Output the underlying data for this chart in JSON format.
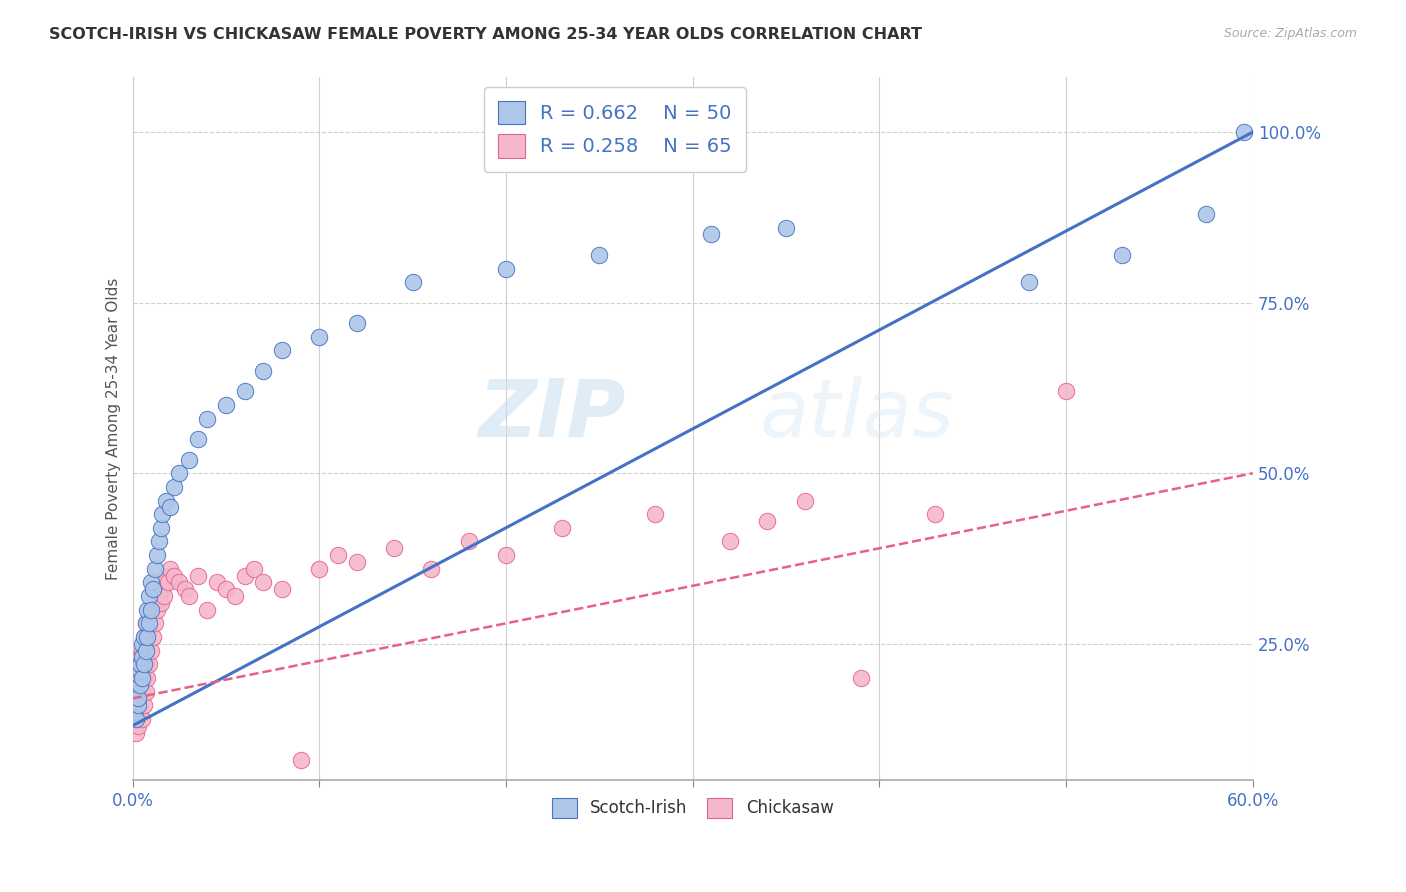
{
  "title": "SCOTCH-IRISH VS CHICKASAW FEMALE POVERTY AMONG 25-34 YEAR OLDS CORRELATION CHART",
  "source": "Source: ZipAtlas.com",
  "ylabel": "Female Poverty Among 25-34 Year Olds",
  "ytick_labels": [
    "25.0%",
    "50.0%",
    "75.0%",
    "100.0%"
  ],
  "ytick_values": [
    0.25,
    0.5,
    0.75,
    1.0
  ],
  "xmin": 0.0,
  "xmax": 0.6,
  "ymin": 0.05,
  "ymax": 1.08,
  "scotch_irish_color": "#aec6e8",
  "chickasaw_color": "#f4b8cc",
  "scotch_irish_line_color": "#4472c4",
  "chickasaw_line_color": "#e8608a",
  "legend_r1": "R = 0.662",
  "legend_n1": "N = 50",
  "legend_r2": "R = 0.258",
  "legend_n2": "N = 65",
  "watermark_zip": "ZIP",
  "watermark_atlas": "atlas",
  "background_color": "#ffffff",
  "grid_color": "#d0d0d0",
  "scotch_irish_x": [
    0.001,
    0.002,
    0.002,
    0.003,
    0.003,
    0.003,
    0.004,
    0.004,
    0.004,
    0.005,
    0.005,
    0.005,
    0.006,
    0.006,
    0.007,
    0.007,
    0.008,
    0.008,
    0.009,
    0.009,
    0.01,
    0.01,
    0.011,
    0.012,
    0.013,
    0.014,
    0.015,
    0.016,
    0.018,
    0.02,
    0.022,
    0.025,
    0.03,
    0.035,
    0.04,
    0.05,
    0.06,
    0.07,
    0.08,
    0.1,
    0.12,
    0.15,
    0.2,
    0.25,
    0.31,
    0.35,
    0.48,
    0.53,
    0.575,
    0.595
  ],
  "scotch_irish_y": [
    0.15,
    0.14,
    0.18,
    0.16,
    0.17,
    0.2,
    0.19,
    0.21,
    0.22,
    0.2,
    0.23,
    0.25,
    0.22,
    0.26,
    0.24,
    0.28,
    0.26,
    0.3,
    0.28,
    0.32,
    0.3,
    0.34,
    0.33,
    0.36,
    0.38,
    0.4,
    0.42,
    0.44,
    0.46,
    0.45,
    0.48,
    0.5,
    0.52,
    0.55,
    0.58,
    0.6,
    0.62,
    0.65,
    0.68,
    0.7,
    0.72,
    0.78,
    0.8,
    0.82,
    0.85,
    0.86,
    0.78,
    0.82,
    0.88,
    1.0
  ],
  "chickasaw_x": [
    0.001,
    0.001,
    0.002,
    0.002,
    0.002,
    0.003,
    0.003,
    0.003,
    0.004,
    0.004,
    0.004,
    0.005,
    0.005,
    0.005,
    0.006,
    0.006,
    0.006,
    0.007,
    0.007,
    0.007,
    0.008,
    0.008,
    0.009,
    0.009,
    0.01,
    0.01,
    0.011,
    0.012,
    0.013,
    0.014,
    0.015,
    0.016,
    0.017,
    0.018,
    0.019,
    0.02,
    0.022,
    0.025,
    0.028,
    0.03,
    0.035,
    0.04,
    0.045,
    0.05,
    0.055,
    0.06,
    0.065,
    0.07,
    0.08,
    0.09,
    0.1,
    0.11,
    0.12,
    0.14,
    0.16,
    0.18,
    0.2,
    0.23,
    0.28,
    0.32,
    0.34,
    0.36,
    0.39,
    0.43,
    0.5
  ],
  "chickasaw_y": [
    0.14,
    0.18,
    0.12,
    0.16,
    0.2,
    0.13,
    0.17,
    0.22,
    0.15,
    0.19,
    0.23,
    0.14,
    0.18,
    0.24,
    0.16,
    0.2,
    0.26,
    0.18,
    0.22,
    0.28,
    0.2,
    0.25,
    0.22,
    0.27,
    0.24,
    0.3,
    0.26,
    0.28,
    0.3,
    0.32,
    0.31,
    0.33,
    0.32,
    0.35,
    0.34,
    0.36,
    0.35,
    0.34,
    0.33,
    0.32,
    0.35,
    0.3,
    0.34,
    0.33,
    0.32,
    0.35,
    0.36,
    0.34,
    0.33,
    0.08,
    0.36,
    0.38,
    0.37,
    0.39,
    0.36,
    0.4,
    0.38,
    0.42,
    0.44,
    0.4,
    0.43,
    0.46,
    0.2,
    0.44,
    0.62
  ],
  "scotch_irish_trend": [
    0.0,
    0.6,
    0.13,
    1.0
  ],
  "chickasaw_trend": [
    0.0,
    0.6,
    0.17,
    0.5
  ]
}
